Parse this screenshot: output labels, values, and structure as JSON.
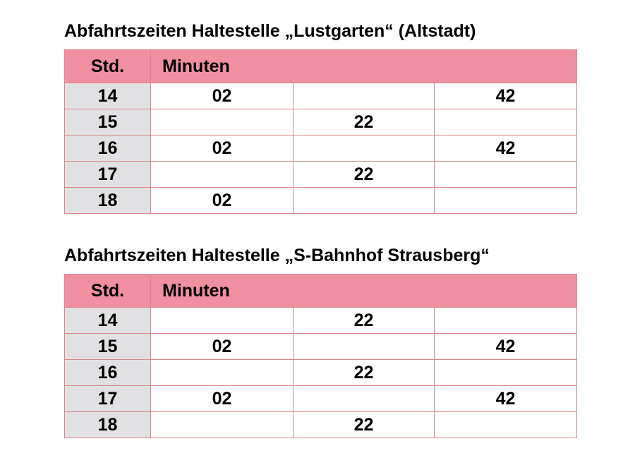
{
  "tables": [
    {
      "title": "Abfahrtszeiten Haltestelle „Lustgarten“ (Altstadt)",
      "header_hour": "Std.",
      "header_minutes": "Minuten",
      "rows": [
        [
          "14",
          "02",
          "",
          "42"
        ],
        [
          "15",
          "",
          "22",
          ""
        ],
        [
          "16",
          "02",
          "",
          "42"
        ],
        [
          "17",
          "",
          "22",
          ""
        ],
        [
          "18",
          "02",
          "",
          ""
        ]
      ]
    },
    {
      "title": "Abfahrtszeiten Haltestelle „S-Bahnhof Strausberg“",
      "header_hour": "Std.",
      "header_minutes": "Minuten",
      "rows": [
        [
          "14",
          "",
          "22",
          ""
        ],
        [
          "15",
          "02",
          "",
          "42"
        ],
        [
          "16",
          "",
          "22",
          ""
        ],
        [
          "17",
          "02",
          "",
          "42"
        ],
        [
          "18",
          "",
          "22",
          ""
        ]
      ]
    }
  ],
  "colors": {
    "header": "#f08fa0",
    "hour_cell": "#e1e1e4",
    "border": "#d98585"
  }
}
